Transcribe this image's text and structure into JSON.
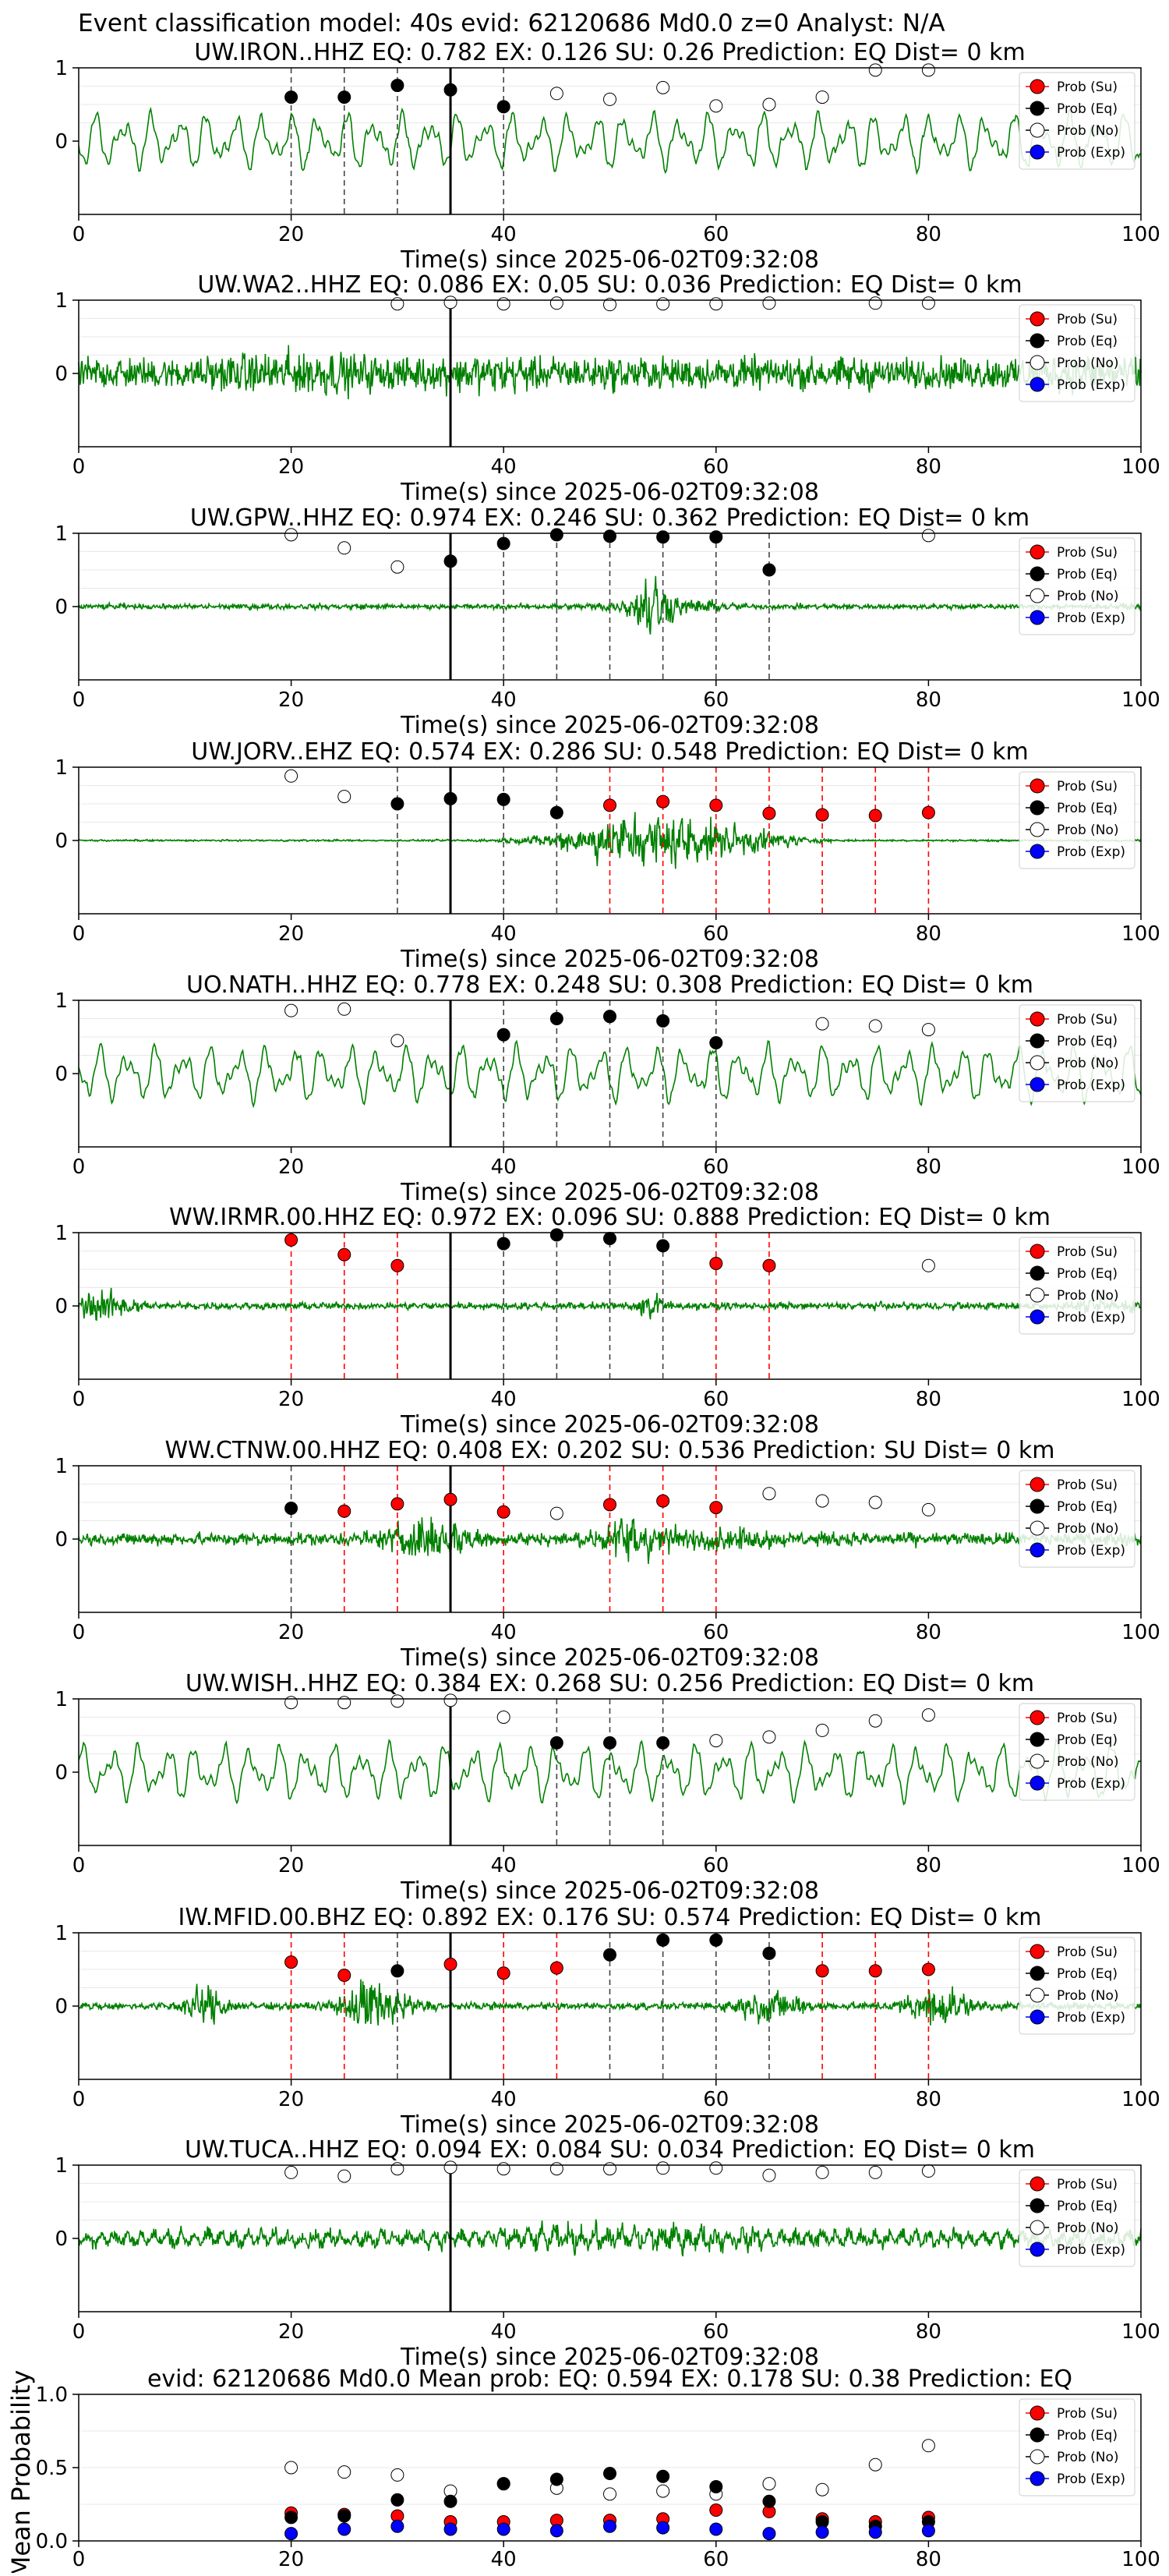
{
  "figure_title": "Event classification model: 40s evid: 62120686 Md0.0 z=0 Analyst: N/A",
  "legend_labels": [
    "Prob (Su)",
    "Prob (Eq)",
    "Prob (No)",
    "Prob (Exp)"
  ],
  "legend_colors": {
    "Su": "#ff0000",
    "Eq": "#000000",
    "No": "#ffffff",
    "Exp": "#0000ff"
  },
  "trace_color": "#008000",
  "xlabel": "Time(s) since 2025-06-02T09:32:08",
  "mean_ylabel": "Mean Probability",
  "chart_data": [
    {
      "type": "line",
      "title": "UW.IRON..HHZ   EQ: 0.782  EX: 0.126  SU: 0.26   Prediction: EQ    Dist= 0 km",
      "xlim": [
        0,
        100
      ],
      "xticks": [
        0,
        20,
        40,
        60,
        80,
        100
      ],
      "yticks": [
        0,
        1
      ],
      "ylim": [
        -1,
        1
      ],
      "trace": "low",
      "pick_time": 35,
      "points": [
        [
          20,
          "Eq",
          0.6
        ],
        [
          25,
          "Eq",
          0.6
        ],
        [
          30,
          "Eq",
          0.76
        ],
        [
          35,
          "Eq",
          0.7
        ],
        [
          40,
          "Eq",
          0.47
        ],
        [
          45,
          "No",
          0.65
        ],
        [
          50,
          "No",
          0.57
        ],
        [
          55,
          "No",
          0.73
        ],
        [
          60,
          "No",
          0.48
        ],
        [
          65,
          "No",
          0.5
        ],
        [
          70,
          "No",
          0.6
        ],
        [
          75,
          "No",
          0.97
        ],
        [
          80,
          "No",
          0.97
        ]
      ],
      "lines": [
        [
          20,
          "Eq"
        ],
        [
          25,
          "Eq"
        ],
        [
          30,
          "Eq"
        ],
        [
          40,
          "Eq"
        ]
      ]
    },
    {
      "type": "line",
      "title": "UW.WA2..HHZ   EQ: 0.086  EX: 0.05  SU: 0.036   Prediction: EQ    Dist= 0 km",
      "xlim": [
        0,
        100
      ],
      "xticks": [
        0,
        20,
        40,
        60,
        80,
        100
      ],
      "yticks": [
        0,
        1
      ],
      "ylim": [
        -1,
        1
      ],
      "trace": "noise",
      "pick_time": 35,
      "points": [
        [
          30,
          "No",
          0.95
        ],
        [
          35,
          "No",
          0.97
        ],
        [
          40,
          "No",
          0.95
        ],
        [
          45,
          "No",
          0.96
        ],
        [
          50,
          "No",
          0.94
        ],
        [
          55,
          "No",
          0.95
        ],
        [
          60,
          "No",
          0.95
        ],
        [
          65,
          "No",
          0.96
        ],
        [
          75,
          "No",
          0.96
        ],
        [
          80,
          "No",
          0.96
        ]
      ],
      "lines": []
    },
    {
      "type": "line",
      "title": "UW.GPW..HHZ   EQ: 0.974  EX: 0.246  SU: 0.362   Prediction: EQ    Dist= 0 km",
      "xlim": [
        0,
        100
      ],
      "xticks": [
        0,
        20,
        40,
        60,
        80,
        100
      ],
      "yticks": [
        0,
        1
      ],
      "ylim": [
        -1,
        1
      ],
      "trace": "quiet_burst",
      "pick_time": 35,
      "points": [
        [
          20,
          "No",
          0.98
        ],
        [
          25,
          "No",
          0.8
        ],
        [
          30,
          "No",
          0.54
        ],
        [
          35,
          "Eq",
          0.62
        ],
        [
          40,
          "Eq",
          0.86
        ],
        [
          45,
          "Eq",
          0.98
        ],
        [
          50,
          "Eq",
          0.96
        ],
        [
          55,
          "Eq",
          0.95
        ],
        [
          60,
          "Eq",
          0.95
        ],
        [
          65,
          "Eq",
          0.5
        ],
        [
          80,
          "No",
          0.97
        ]
      ],
      "lines": [
        [
          40,
          "Eq"
        ],
        [
          45,
          "Eq"
        ],
        [
          50,
          "Eq"
        ],
        [
          55,
          "Eq"
        ],
        [
          60,
          "Eq"
        ],
        [
          65,
          "Eq"
        ]
      ]
    },
    {
      "type": "line",
      "title": "UW.JORV..EHZ   EQ: 0.574  EX: 0.286  SU: 0.548   Prediction: EQ    Dist= 0 km",
      "xlim": [
        0,
        100
      ],
      "xticks": [
        0,
        20,
        40,
        60,
        80,
        100
      ],
      "yticks": [
        0,
        1
      ],
      "ylim": [
        -1,
        1
      ],
      "trace": "quiet_event",
      "pick_time": 35,
      "points": [
        [
          20,
          "No",
          0.88
        ],
        [
          25,
          "No",
          0.6
        ],
        [
          30,
          "Eq",
          0.5
        ],
        [
          35,
          "Eq",
          0.57
        ],
        [
          40,
          "Eq",
          0.56
        ],
        [
          45,
          "Eq",
          0.38
        ],
        [
          50,
          "Su",
          0.48
        ],
        [
          55,
          "Su",
          0.53
        ],
        [
          60,
          "Su",
          0.48
        ],
        [
          65,
          "Su",
          0.37
        ],
        [
          70,
          "Su",
          0.35
        ],
        [
          75,
          "Su",
          0.34
        ],
        [
          80,
          "Su",
          0.38
        ]
      ],
      "lines": [
        [
          30,
          "Eq"
        ],
        [
          40,
          "Eq"
        ],
        [
          45,
          "Eq"
        ],
        [
          50,
          "Su"
        ],
        [
          55,
          "Su"
        ],
        [
          60,
          "Su"
        ],
        [
          65,
          "Su"
        ],
        [
          70,
          "Su"
        ],
        [
          75,
          "Su"
        ],
        [
          80,
          "Su"
        ]
      ]
    },
    {
      "type": "line",
      "title": "UO.NATH..HHZ   EQ: 0.778  EX: 0.248  SU: 0.308   Prediction: EQ    Dist= 0 km",
      "xlim": [
        0,
        100
      ],
      "xticks": [
        0,
        20,
        40,
        60,
        80,
        100
      ],
      "yticks": [
        0,
        1
      ],
      "ylim": [
        -1,
        1
      ],
      "trace": "low",
      "pick_time": 35,
      "points": [
        [
          20,
          "No",
          0.86
        ],
        [
          25,
          "No",
          0.88
        ],
        [
          30,
          "No",
          0.45
        ],
        [
          40,
          "Eq",
          0.53
        ],
        [
          45,
          "Eq",
          0.75
        ],
        [
          50,
          "Eq",
          0.78
        ],
        [
          55,
          "Eq",
          0.72
        ],
        [
          60,
          "Eq",
          0.42
        ],
        [
          70,
          "No",
          0.68
        ],
        [
          75,
          "No",
          0.65
        ],
        [
          80,
          "No",
          0.6
        ]
      ],
      "lines": [
        [
          40,
          "Eq"
        ],
        [
          45,
          "Eq"
        ],
        [
          50,
          "Eq"
        ],
        [
          55,
          "Eq"
        ],
        [
          60,
          "Eq"
        ]
      ]
    },
    {
      "type": "line",
      "title": "WW.IRMR.00.HHZ   EQ: 0.972  EX: 0.096  SU: 0.888   Prediction: EQ    Dist= 0 km",
      "xlim": [
        0,
        100
      ],
      "xticks": [
        0,
        20,
        40,
        60,
        80,
        100
      ],
      "yticks": [
        0,
        1
      ],
      "ylim": [
        -1,
        1
      ],
      "trace": "moderate",
      "pick_time": 35,
      "points": [
        [
          20,
          "Su",
          0.9
        ],
        [
          25,
          "Su",
          0.7
        ],
        [
          30,
          "Su",
          0.55
        ],
        [
          40,
          "Eq",
          0.85
        ],
        [
          45,
          "Eq",
          0.97
        ],
        [
          50,
          "Eq",
          0.92
        ],
        [
          55,
          "Eq",
          0.82
        ],
        [
          60,
          "Su",
          0.58
        ],
        [
          65,
          "Su",
          0.55
        ],
        [
          80,
          "No",
          0.55
        ]
      ],
      "lines": [
        [
          20,
          "Su"
        ],
        [
          25,
          "Su"
        ],
        [
          30,
          "Su"
        ],
        [
          40,
          "Eq"
        ],
        [
          45,
          "Eq"
        ],
        [
          50,
          "Eq"
        ],
        [
          55,
          "Eq"
        ],
        [
          60,
          "Su"
        ],
        [
          65,
          "Su"
        ]
      ]
    },
    {
      "type": "line",
      "title": "WW.CTNW.00.HHZ   EQ: 0.408  EX: 0.202  SU: 0.536   Prediction: SU    Dist= 0 km",
      "xlim": [
        0,
        100
      ],
      "xticks": [
        0,
        20,
        40,
        60,
        80,
        100
      ],
      "yticks": [
        0,
        1
      ],
      "ylim": [
        -1,
        1
      ],
      "trace": "noise_med",
      "pick_time": 35,
      "points": [
        [
          20,
          "Eq",
          0.42
        ],
        [
          25,
          "Su",
          0.38
        ],
        [
          30,
          "Su",
          0.48
        ],
        [
          35,
          "Su",
          0.54
        ],
        [
          40,
          "Su",
          0.37
        ],
        [
          45,
          "No",
          0.35
        ],
        [
          50,
          "Su",
          0.47
        ],
        [
          55,
          "Su",
          0.52
        ],
        [
          60,
          "Su",
          0.43
        ],
        [
          65,
          "No",
          0.62
        ],
        [
          70,
          "No",
          0.52
        ],
        [
          75,
          "No",
          0.5
        ],
        [
          80,
          "No",
          0.4
        ]
      ],
      "lines": [
        [
          20,
          "Eq"
        ],
        [
          25,
          "Su"
        ],
        [
          30,
          "Su"
        ],
        [
          40,
          "Su"
        ],
        [
          50,
          "Su"
        ],
        [
          55,
          "Su"
        ],
        [
          60,
          "Su"
        ]
      ]
    },
    {
      "type": "line",
      "title": "UW.WISH..HHZ   EQ: 0.384  EX: 0.268  SU: 0.256   Prediction: EQ    Dist= 0 km",
      "xlim": [
        0,
        100
      ],
      "xticks": [
        0,
        20,
        40,
        60,
        80,
        100
      ],
      "yticks": [
        0,
        1
      ],
      "ylim": [
        -1,
        1
      ],
      "trace": "low",
      "pick_time": 35,
      "points": [
        [
          20,
          "No",
          0.95
        ],
        [
          25,
          "No",
          0.95
        ],
        [
          30,
          "No",
          0.97
        ],
        [
          35,
          "No",
          0.98
        ],
        [
          40,
          "No",
          0.75
        ],
        [
          45,
          "Eq",
          0.4
        ],
        [
          50,
          "Eq",
          0.4
        ],
        [
          55,
          "Eq",
          0.4
        ],
        [
          60,
          "No",
          0.43
        ],
        [
          65,
          "No",
          0.48
        ],
        [
          70,
          "No",
          0.57
        ],
        [
          75,
          "No",
          0.7
        ],
        [
          80,
          "No",
          0.78
        ]
      ],
      "lines": [
        [
          45,
          "Eq"
        ],
        [
          50,
          "Eq"
        ],
        [
          55,
          "Eq"
        ]
      ]
    },
    {
      "type": "line",
      "title": "IW.MFID.00.BHZ   EQ: 0.892  EX: 0.176  SU: 0.574   Prediction: EQ    Dist= 0 km",
      "xlim": [
        0,
        100
      ],
      "xticks": [
        0,
        20,
        40,
        60,
        80,
        100
      ],
      "yticks": [
        0,
        1
      ],
      "ylim": [
        -1,
        1
      ],
      "trace": "mfid",
      "pick_time": 35,
      "points": [
        [
          20,
          "Su",
          0.6
        ],
        [
          25,
          "Su",
          0.42
        ],
        [
          30,
          "Eq",
          0.48
        ],
        [
          35,
          "Su",
          0.57
        ],
        [
          40,
          "Su",
          0.45
        ],
        [
          45,
          "Su",
          0.52
        ],
        [
          50,
          "Eq",
          0.7
        ],
        [
          55,
          "Eq",
          0.9
        ],
        [
          60,
          "Eq",
          0.9
        ],
        [
          65,
          "Eq",
          0.72
        ],
        [
          70,
          "Su",
          0.48
        ],
        [
          75,
          "Su",
          0.48
        ],
        [
          80,
          "Su",
          0.5
        ]
      ],
      "lines": [
        [
          20,
          "Su"
        ],
        [
          25,
          "Su"
        ],
        [
          30,
          "Eq"
        ],
        [
          40,
          "Su"
        ],
        [
          45,
          "Su"
        ],
        [
          50,
          "Eq"
        ],
        [
          55,
          "Eq"
        ],
        [
          60,
          "Eq"
        ],
        [
          65,
          "Eq"
        ],
        [
          70,
          "Su"
        ],
        [
          75,
          "Su"
        ],
        [
          80,
          "Su"
        ]
      ]
    },
    {
      "type": "line",
      "title": "UW.TUCA..HHZ   EQ: 0.094  EX: 0.084  SU: 0.034   Prediction: EQ    Dist= 0 km",
      "xlim": [
        0,
        100
      ],
      "xticks": [
        0,
        20,
        40,
        60,
        80,
        100
      ],
      "yticks": [
        0,
        1
      ],
      "ylim": [
        -1,
        1
      ],
      "trace": "tuca",
      "pick_time": 35,
      "points": [
        [
          20,
          "No",
          0.9
        ],
        [
          25,
          "No",
          0.85
        ],
        [
          30,
          "No",
          0.95
        ],
        [
          35,
          "No",
          0.97
        ],
        [
          40,
          "No",
          0.95
        ],
        [
          45,
          "No",
          0.95
        ],
        [
          50,
          "No",
          0.95
        ],
        [
          55,
          "No",
          0.96
        ],
        [
          60,
          "No",
          0.96
        ],
        [
          65,
          "No",
          0.86
        ],
        [
          70,
          "No",
          0.9
        ],
        [
          75,
          "No",
          0.9
        ],
        [
          80,
          "No",
          0.92
        ]
      ],
      "lines": []
    },
    {
      "type": "scatter",
      "title": "evid: 62120686  Md0.0   Mean prob:   EQ: 0.594  EX: 0.178  SU: 0.38   Prediction: EQ",
      "xlim": [
        0,
        100
      ],
      "ylim": [
        0,
        1
      ],
      "xticks": [
        0,
        20,
        40,
        60,
        80,
        100
      ],
      "yticks": [
        0.0,
        0.5,
        1.0
      ],
      "series": [
        {
          "name": "Prob (Su)",
          "x": [
            20,
            25,
            30,
            35,
            40,
            45,
            50,
            55,
            60,
            65,
            70,
            75,
            80
          ],
          "values": [
            0.19,
            0.18,
            0.17,
            0.13,
            0.13,
            0.14,
            0.14,
            0.15,
            0.21,
            0.2,
            0.15,
            0.13,
            0.16
          ]
        },
        {
          "name": "Prob (Eq)",
          "x": [
            20,
            25,
            30,
            35,
            40,
            45,
            50,
            55,
            60,
            65,
            70,
            75,
            80
          ],
          "values": [
            0.16,
            0.17,
            0.28,
            0.27,
            0.39,
            0.42,
            0.46,
            0.44,
            0.37,
            0.27,
            0.13,
            0.1,
            0.13
          ]
        },
        {
          "name": "Prob (No)",
          "x": [
            20,
            25,
            30,
            35,
            40,
            45,
            50,
            55,
            60,
            65,
            70,
            75,
            80
          ],
          "values": [
            0.5,
            0.47,
            0.45,
            0.34,
            0.39,
            0.36,
            0.32,
            0.34,
            0.32,
            0.39,
            0.35,
            0.52,
            0.65
          ]
        },
        {
          "name": "Prob (Exp)",
          "x": [
            20,
            25,
            30,
            35,
            40,
            45,
            50,
            55,
            60,
            65,
            70,
            75,
            80
          ],
          "values": [
            0.05,
            0.08,
            0.1,
            0.08,
            0.08,
            0.07,
            0.1,
            0.09,
            0.08,
            0.05,
            0.06,
            0.06,
            0.07
          ]
        }
      ]
    }
  ]
}
